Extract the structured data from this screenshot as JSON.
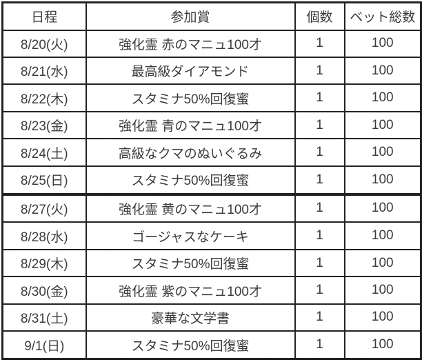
{
  "table": {
    "columns": [
      "日程",
      "参加賞",
      "個数",
      "ベット総数"
    ],
    "rows": [
      [
        "8/20(火)",
        "強化霊 赤のマニュ100才",
        "1",
        "100"
      ],
      [
        "8/21(水)",
        "最高級ダイアモンド",
        "1",
        "100"
      ],
      [
        "8/22(木)",
        "スタミナ50%回復蜜",
        "1",
        "100"
      ],
      [
        "8/23(金)",
        "強化霊 青のマニュ100才",
        "1",
        "100"
      ],
      [
        "8/24(土)",
        "高級なクマのぬいぐるみ",
        "1",
        "100"
      ],
      [
        "8/25(日)",
        "スタミナ50%回復蜜",
        "1",
        "100"
      ],
      [
        "8/27(火)",
        "強化霊 黄のマニュ100才",
        "1",
        "100"
      ],
      [
        "8/28(水)",
        "ゴージャスなケーキ",
        "1",
        "100"
      ],
      [
        "8/29(木)",
        "スタミナ50%回復蜜",
        "1",
        "100"
      ],
      [
        "8/30(金)",
        "強化霊 紫のマニュ100才",
        "1",
        "100"
      ],
      [
        "8/31(土)",
        "豪華な文学書",
        "1",
        "100"
      ],
      [
        "9/1(日)",
        "スタミナ50%回復蜜",
        "1",
        "100"
      ]
    ],
    "week_break_after_row_index": 5
  },
  "colors": {
    "border": "#222222",
    "text": "#3b3b3b"
  }
}
